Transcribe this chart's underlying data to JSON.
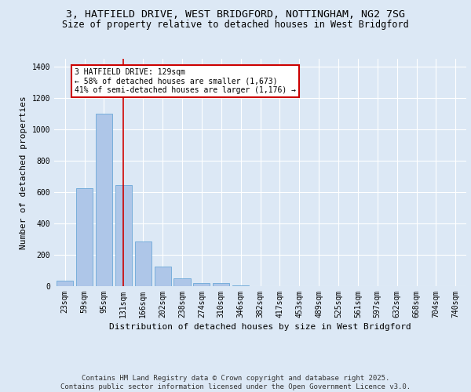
{
  "title_line1": "3, HATFIELD DRIVE, WEST BRIDGFORD, NOTTINGHAM, NG2 7SG",
  "title_line2": "Size of property relative to detached houses in West Bridgford",
  "xlabel": "Distribution of detached houses by size in West Bridgford",
  "ylabel": "Number of detached properties",
  "categories": [
    "23sqm",
    "59sqm",
    "95sqm",
    "131sqm",
    "166sqm",
    "202sqm",
    "238sqm",
    "274sqm",
    "310sqm",
    "346sqm",
    "382sqm",
    "417sqm",
    "453sqm",
    "489sqm",
    "525sqm",
    "561sqm",
    "597sqm",
    "632sqm",
    "668sqm",
    "704sqm",
    "740sqm"
  ],
  "values": [
    35,
    625,
    1100,
    645,
    285,
    125,
    50,
    22,
    18,
    5,
    0,
    0,
    0,
    0,
    0,
    0,
    0,
    0,
    0,
    0,
    0
  ],
  "bar_color": "#aec6e8",
  "bar_edge_color": "#5a9fd4",
  "background_color": "#dce8f5",
  "grid_color": "#ffffff",
  "vline_x": 3,
  "vline_color": "#cc0000",
  "annotation_text": "3 HATFIELD DRIVE: 129sqm\n← 58% of detached houses are smaller (1,673)\n41% of semi-detached houses are larger (1,176) →",
  "annotation_box_color": "#cc0000",
  "ylim": [
    0,
    1450
  ],
  "yticks": [
    0,
    200,
    400,
    600,
    800,
    1000,
    1200,
    1400
  ],
  "footer_line1": "Contains HM Land Registry data © Crown copyright and database right 2025.",
  "footer_line2": "Contains public sector information licensed under the Open Government Licence v3.0.",
  "title_fontsize": 9.5,
  "subtitle_fontsize": 8.5,
  "axis_label_fontsize": 8,
  "tick_fontsize": 7,
  "footer_fontsize": 6.5
}
